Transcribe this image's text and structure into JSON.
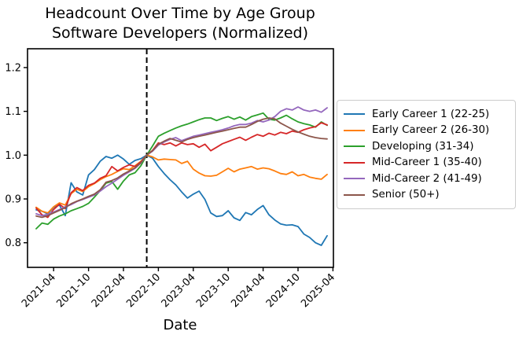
{
  "chart_data": {
    "type": "line",
    "title": "Headcount Over Time by Age Group",
    "subtitle": "Software Developers (Normalized)",
    "xlabel": "Date",
    "ylabel": "",
    "x_monthly_start": "2021-01",
    "x_tick_labels": [
      "2021-04",
      "2021-10",
      "2022-04",
      "2022-10",
      "2023-04",
      "2023-10",
      "2024-04",
      "2024-10",
      "2025-04"
    ],
    "x_tick_month_indices": [
      3,
      9,
      15,
      21,
      27,
      33,
      39,
      45,
      51
    ],
    "y_ticks": [
      0.8,
      0.9,
      1.0,
      1.1,
      1.2
    ],
    "ylim": [
      0.744,
      1.243
    ],
    "grid": false,
    "legend_position": "right-outside",
    "vline": {
      "month_index": 19,
      "date": "2022-08",
      "style": "dashed",
      "color": "#000000"
    },
    "series": [
      {
        "name": "Early Career 1 (22-25)",
        "color": "#1f77b4",
        "values": [
          0.875,
          0.872,
          0.866,
          0.881,
          0.886,
          0.862,
          0.937,
          0.916,
          0.909,
          0.955,
          0.967,
          0.986,
          0.997,
          0.993,
          1.0,
          0.991,
          0.979,
          0.988,
          0.992,
          1.0,
          0.993,
          0.974,
          0.958,
          0.944,
          0.932,
          0.916,
          0.902,
          0.911,
          0.918,
          0.899,
          0.868,
          0.86,
          0.862,
          0.873,
          0.857,
          0.851,
          0.869,
          0.864,
          0.876,
          0.885,
          0.864,
          0.852,
          0.843,
          0.84,
          0.841,
          0.837,
          0.82,
          0.812,
          0.8,
          0.794,
          0.816
        ]
      },
      {
        "name": "Early Career 2 (26-30)",
        "color": "#ff7f0e",
        "values": [
          0.881,
          0.872,
          0.868,
          0.882,
          0.891,
          0.886,
          0.912,
          0.922,
          0.917,
          0.928,
          0.935,
          0.944,
          0.951,
          0.956,
          0.963,
          0.969,
          0.967,
          0.976,
          0.986,
          1.0,
          0.996,
          0.989,
          0.991,
          0.99,
          0.989,
          0.981,
          0.986,
          0.968,
          0.959,
          0.953,
          0.952,
          0.954,
          0.962,
          0.97,
          0.962,
          0.968,
          0.971,
          0.974,
          0.968,
          0.971,
          0.969,
          0.964,
          0.958,
          0.956,
          0.962,
          0.953,
          0.956,
          0.95,
          0.947,
          0.945,
          0.956
        ]
      },
      {
        "name": "Developing (31-34)",
        "color": "#2ca02c",
        "values": [
          0.832,
          0.845,
          0.842,
          0.854,
          0.861,
          0.866,
          0.873,
          0.878,
          0.883,
          0.89,
          0.904,
          0.919,
          0.936,
          0.94,
          0.922,
          0.941,
          0.955,
          0.96,
          0.976,
          1.0,
          1.021,
          1.043,
          1.05,
          1.056,
          1.062,
          1.067,
          1.071,
          1.076,
          1.081,
          1.085,
          1.085,
          1.079,
          1.084,
          1.088,
          1.082,
          1.087,
          1.08,
          1.088,
          1.092,
          1.096,
          1.082,
          1.08,
          1.085,
          1.091,
          1.083,
          1.076,
          1.072,
          1.069,
          1.064,
          1.076,
          1.068
        ]
      },
      {
        "name": "Mid-Career 1 (35-40)",
        "color": "#d62728",
        "values": [
          0.879,
          0.864,
          0.858,
          0.876,
          0.888,
          0.878,
          0.914,
          0.926,
          0.919,
          0.931,
          0.936,
          0.947,
          0.953,
          0.974,
          0.964,
          0.972,
          0.978,
          0.974,
          0.985,
          1.0,
          1.011,
          1.028,
          1.024,
          1.028,
          1.021,
          1.028,
          1.024,
          1.026,
          1.018,
          1.025,
          1.01,
          1.018,
          1.026,
          1.031,
          1.036,
          1.041,
          1.034,
          1.041,
          1.047,
          1.043,
          1.05,
          1.046,
          1.052,
          1.049,
          1.055,
          1.052,
          1.058,
          1.062,
          1.065,
          1.074,
          1.069
        ]
      },
      {
        "name": "Mid-Career 2 (41-49)",
        "color": "#9467bd",
        "values": [
          0.866,
          0.862,
          0.865,
          0.87,
          0.876,
          0.882,
          0.887,
          0.894,
          0.899,
          0.904,
          0.909,
          0.918,
          0.928,
          0.936,
          0.945,
          0.954,
          0.962,
          0.97,
          0.982,
          1.0,
          1.009,
          1.023,
          1.03,
          1.036,
          1.04,
          1.033,
          1.038,
          1.043,
          1.046,
          1.049,
          1.052,
          1.055,
          1.058,
          1.062,
          1.067,
          1.07,
          1.07,
          1.073,
          1.079,
          1.076,
          1.08,
          1.088,
          1.1,
          1.106,
          1.103,
          1.11,
          1.103,
          1.1,
          1.103,
          1.098,
          1.108
        ]
      },
      {
        "name": "Senior (50+)",
        "color": "#8c564b",
        "values": [
          0.861,
          0.858,
          0.862,
          0.868,
          0.874,
          0.88,
          0.889,
          0.895,
          0.9,
          0.906,
          0.911,
          0.921,
          0.938,
          0.942,
          0.948,
          0.957,
          0.964,
          0.971,
          0.983,
          1.0,
          1.01,
          1.025,
          1.032,
          1.038,
          1.034,
          1.03,
          1.036,
          1.04,
          1.043,
          1.046,
          1.049,
          1.052,
          1.055,
          1.058,
          1.061,
          1.064,
          1.064,
          1.07,
          1.077,
          1.082,
          1.085,
          1.083,
          1.073,
          1.066,
          1.059,
          1.053,
          1.048,
          1.043,
          1.04,
          1.038,
          1.037
        ]
      }
    ]
  },
  "axis_colors": {
    "spine": "#000000",
    "tick_label": "#000000"
  }
}
